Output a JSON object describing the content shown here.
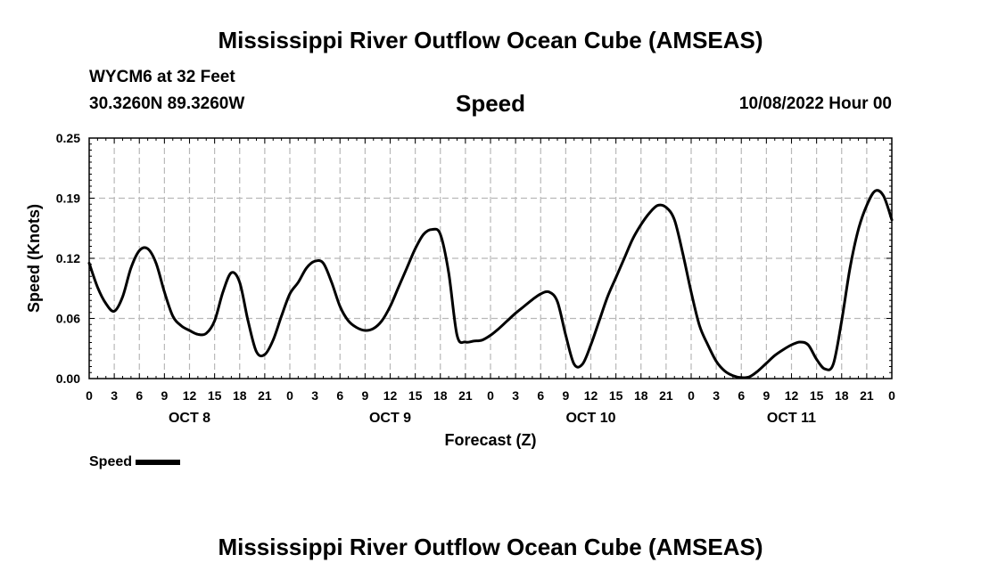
{
  "header": {
    "title": "Mississippi River Outflow Ocean Cube (AMSEAS)",
    "station": "WYCM6 at 32 Feet",
    "coordinates": "30.3260N  89.3260W",
    "subtitle": "Speed",
    "datetime": "10/08/2022 Hour 00"
  },
  "footer": {
    "title": "Mississippi River Outflow Ocean Cube (AMSEAS)"
  },
  "legend": {
    "label": "Speed",
    "color": "#000000"
  },
  "chart_data": {
    "type": "line",
    "title": "Speed",
    "xlabel": "Forecast (Z)",
    "ylabel": "Speed (Knots)",
    "ylim": [
      0,
      0.25
    ],
    "xlim": [
      0,
      96
    ],
    "x_unit": "hours from 10/08/2022 00Z",
    "yticks": [
      "0.00",
      "0.06",
      "0.12",
      "0.19",
      "0.25"
    ],
    "ytick_values": [
      0,
      0.0625,
      0.125,
      0.1875,
      0.25
    ],
    "xticks": [
      "0",
      "3",
      "6",
      "9",
      "12",
      "15",
      "18",
      "21",
      "0",
      "3",
      "6",
      "9",
      "12",
      "15",
      "18",
      "21",
      "0",
      "3",
      "6",
      "9",
      "12",
      "15",
      "18",
      "21",
      "0",
      "3",
      "6",
      "9",
      "12",
      "15",
      "18",
      "21",
      "0"
    ],
    "day_labels": [
      {
        "label": "OCT 8",
        "hour": 12
      },
      {
        "label": "OCT 9",
        "hour": 36
      },
      {
        "label": "OCT 10",
        "hour": 60
      },
      {
        "label": "OCT 11",
        "hour": 84
      }
    ],
    "grid": true,
    "legend_position": "bottom-left",
    "series": [
      {
        "name": "Speed",
        "color": "#000000",
        "x": [
          0,
          1,
          2,
          3,
          4,
          5,
          6,
          7,
          8,
          9,
          10,
          11,
          12,
          13,
          14,
          15,
          16,
          17,
          18,
          19,
          20,
          21,
          22,
          23,
          24,
          25,
          26,
          27,
          28,
          29,
          30,
          31,
          32,
          33,
          34,
          35,
          36,
          37,
          38,
          39,
          40,
          41,
          42,
          43,
          44,
          45,
          46,
          47,
          48,
          49,
          50,
          51,
          52,
          53,
          54,
          55,
          56,
          57,
          58,
          59,
          60,
          61,
          62,
          63,
          64,
          65,
          66,
          67,
          68,
          69,
          70,
          71,
          72,
          73,
          74,
          75,
          76,
          77,
          78,
          79,
          80,
          81,
          82,
          83,
          84,
          85,
          86,
          87,
          88,
          89,
          90,
          91,
          92,
          93,
          94,
          95,
          96
        ],
        "y": [
          0.12,
          0.095,
          0.078,
          0.07,
          0.085,
          0.115,
          0.133,
          0.135,
          0.12,
          0.09,
          0.065,
          0.055,
          0.05,
          0.046,
          0.047,
          0.06,
          0.09,
          0.11,
          0.1,
          0.06,
          0.028,
          0.025,
          0.04,
          0.065,
          0.088,
          0.1,
          0.115,
          0.122,
          0.12,
          0.1,
          0.075,
          0.06,
          0.053,
          0.05,
          0.052,
          0.06,
          0.075,
          0.095,
          0.115,
          0.135,
          0.15,
          0.155,
          0.15,
          0.11,
          0.045,
          0.038,
          0.039,
          0.04,
          0.045,
          0.052,
          0.06,
          0.068,
          0.075,
          0.082,
          0.088,
          0.09,
          0.08,
          0.045,
          0.015,
          0.015,
          0.035,
          0.06,
          0.085,
          0.105,
          0.125,
          0.145,
          0.16,
          0.172,
          0.18,
          0.178,
          0.165,
          0.13,
          0.09,
          0.055,
          0.035,
          0.018,
          0.008,
          0.003,
          0.001,
          0.002,
          0.008,
          0.016,
          0.024,
          0.03,
          0.035,
          0.038,
          0.035,
          0.02,
          0.01,
          0.015,
          0.06,
          0.115,
          0.155,
          0.18,
          0.195,
          0.19,
          0.165
        ]
      }
    ]
  }
}
